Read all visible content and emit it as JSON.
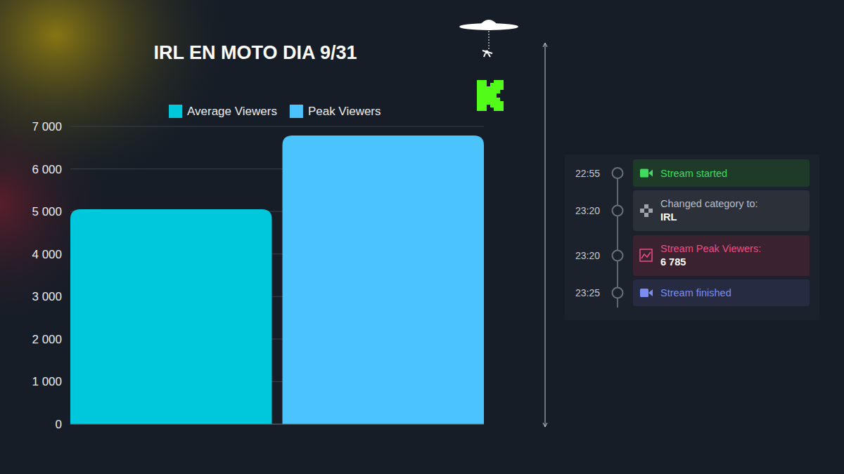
{
  "chart_data": {
    "type": "bar",
    "title": "IRL EN MOTO DIA 9/31",
    "categories": [
      null
    ],
    "series": [
      {
        "name": "Average Viewers",
        "color": "#00c8dc",
        "values": [
          5050
        ]
      },
      {
        "name": "Peak Viewers",
        "color": "#4bc3fd",
        "values": [
          6785
        ]
      }
    ],
    "ylim": [
      0,
      7000
    ],
    "yticks": [
      0,
      {
        "value": 1000,
        "label": "1 000"
      },
      {
        "value": 2000,
        "label": "2 000"
      },
      {
        "value": 3000,
        "label": "3 000"
      },
      {
        "value": 4000,
        "label": "4 000"
      },
      {
        "value": 5000,
        "label": "5 000"
      },
      {
        "value": 6000,
        "label": "6 000"
      },
      {
        "value": 7000,
        "label": "7 000"
      }
    ],
    "grid": true,
    "legend": "top",
    "tick_labels": "y"
  },
  "timeline": [
    {
      "time": "22:55",
      "label": "Stream started"
    },
    {
      "time": "23:20",
      "label": "Changed category to:",
      "detail": "IRL"
    },
    {
      "time": "23:20",
      "label": "Stream Peak Viewers:",
      "detail": "6 785"
    },
    {
      "time": "23:25",
      "label": "Stream finished"
    }
  ]
}
